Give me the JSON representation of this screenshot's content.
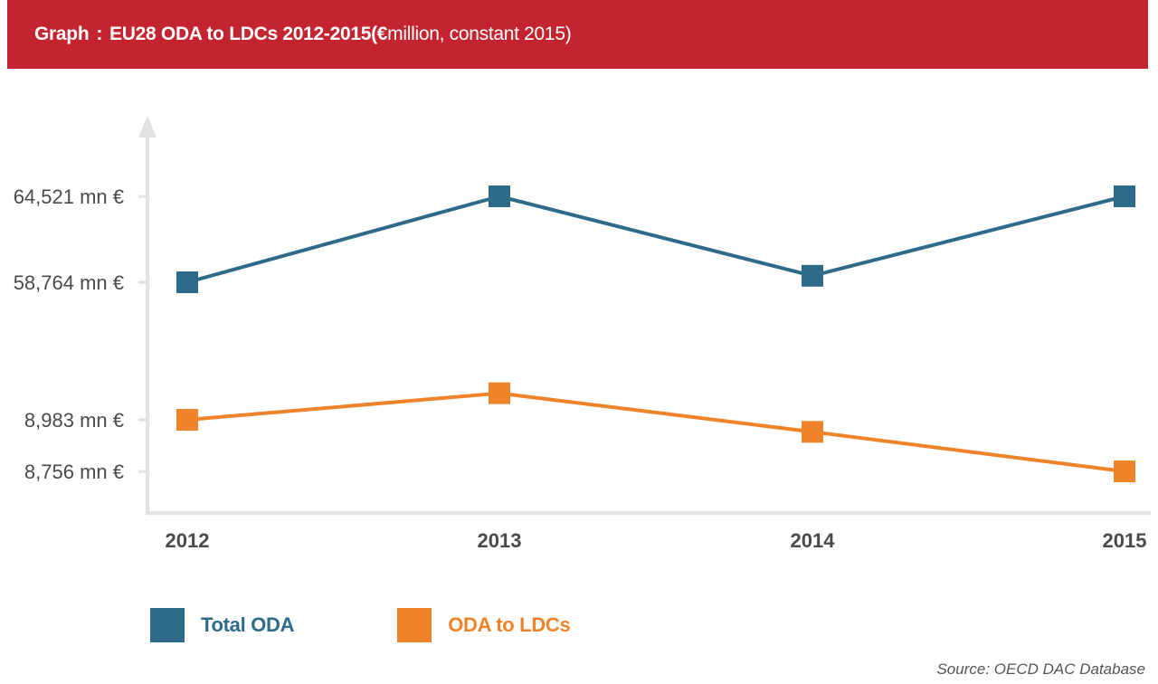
{
  "header": {
    "lead": "Graph",
    "separator": ":",
    "title_bold": "EU28 ODA to LDCs 2012-2015",
    "title_rest_open": " (€",
    "title_rest": " million, constant 2015)"
  },
  "chart_data": {
    "type": "line",
    "title": "EU28 ODA to LDCs 2012-2015 (€ million, constant 2015)",
    "xlabel": "",
    "ylabel": "€ million, constant 2015",
    "categories": [
      "2012",
      "2013",
      "2014",
      "2015"
    ],
    "y_tick_labels": [
      "64,521 mn €",
      "58,764 mn €",
      "8,983 mn €",
      "8,756 mn €"
    ],
    "y_axis_broken": true,
    "series": [
      {
        "name": "Total ODA",
        "color": "#2e6b8a",
        "values": [
          58764,
          64521,
          59200,
          64521
        ],
        "labeled_points": {
          "2012": "58,764 mn €",
          "2013": "64,521 mn €"
        }
      },
      {
        "name": "ODA to LDCs",
        "color": "#ef8329",
        "values": [
          8983,
          9100,
          8930,
          8756
        ],
        "labeled_points": {
          "2012": "8,983 mn €",
          "2015": "8,756 mn €"
        }
      }
    ],
    "grid": false,
    "legend_position": "bottom-left"
  },
  "legend": {
    "items": [
      {
        "label": "Total ODA",
        "color": "#2e6b8a"
      },
      {
        "label": "ODA to LDCs",
        "color": "#ef8329"
      }
    ]
  },
  "source": "Source: OECD DAC Database"
}
